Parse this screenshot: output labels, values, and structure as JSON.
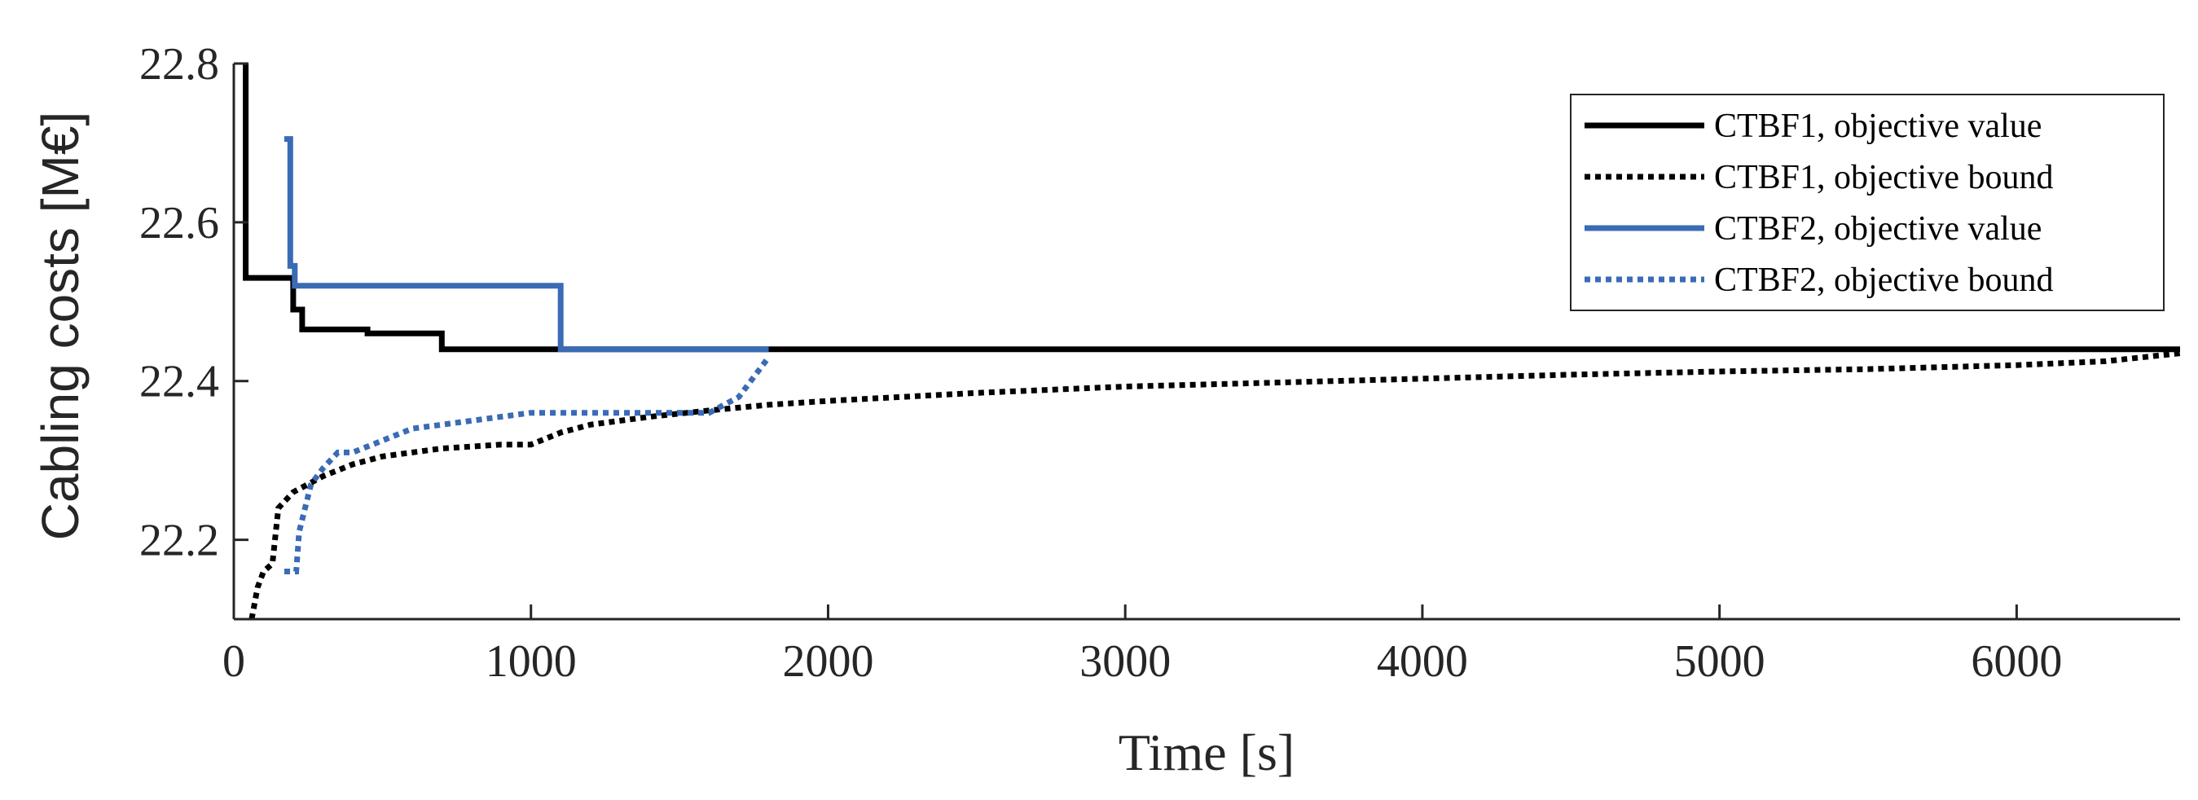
{
  "chart_data": {
    "type": "line",
    "xlabel": "Time [s]",
    "ylabel": "Cabling costs [M€]",
    "xlim": [
      0,
      6550
    ],
    "ylim": [
      22.1,
      22.8
    ],
    "xticks": [
      0,
      1000,
      2000,
      3000,
      4000,
      5000,
      6000
    ],
    "yticks": [
      22.2,
      22.4,
      22.6,
      22.8
    ],
    "xtick_labels": [
      "0",
      "1000",
      "2000",
      "3000",
      "4000",
      "5000",
      "6000"
    ],
    "ytick_labels": [
      "22.2",
      "22.4",
      "22.6",
      "22.8"
    ],
    "grid": false,
    "legend_position": "top-right",
    "series": [
      {
        "name": "CTBF1, objective value",
        "color": "#000000",
        "style": "solid",
        "x": [
          40,
          40,
          200,
          200,
          230,
          230,
          450,
          450,
          700,
          700,
          6550
        ],
        "y": [
          22.8,
          22.53,
          22.53,
          22.49,
          22.49,
          22.465,
          22.465,
          22.46,
          22.46,
          22.44,
          22.44
        ]
      },
      {
        "name": "CTBF1, objective bound",
        "color": "#000000",
        "style": "dotted",
        "x": [
          60,
          80,
          100,
          130,
          150,
          200,
          250,
          300,
          400,
          500,
          700,
          900,
          1000,
          1100,
          1200,
          1400,
          1600,
          1800,
          2000,
          2500,
          3000,
          3500,
          4000,
          4500,
          5000,
          5500,
          6000,
          6300,
          6550
        ],
        "y": [
          22.1,
          22.14,
          22.16,
          22.17,
          22.24,
          22.26,
          22.27,
          22.28,
          22.295,
          22.305,
          22.315,
          22.32,
          22.32,
          22.335,
          22.345,
          22.355,
          22.363,
          22.37,
          22.375,
          22.385,
          22.393,
          22.398,
          22.403,
          22.408,
          22.412,
          22.415,
          22.42,
          22.425,
          22.435
        ]
      },
      {
        "name": "CTBF2, objective value",
        "color": "#3a6bb5",
        "style": "solid",
        "x": [
          170,
          190,
          190,
          205,
          205,
          1100,
          1100,
          1800,
          1800
        ],
        "y": [
          22.705,
          22.705,
          22.545,
          22.545,
          22.52,
          22.52,
          22.44,
          22.44,
          22.44
        ]
      },
      {
        "name": "CTBF2, objective bound",
        "color": "#3a6bb5",
        "style": "dotted",
        "x": [
          170,
          210,
          220,
          260,
          300,
          350,
          400,
          500,
          600,
          700,
          800,
          1000,
          1200,
          1400,
          1600,
          1700,
          1800
        ],
        "y": [
          22.16,
          22.16,
          22.21,
          22.27,
          22.29,
          22.31,
          22.31,
          22.325,
          22.34,
          22.345,
          22.35,
          22.36,
          22.36,
          22.36,
          22.36,
          22.38,
          22.43
        ]
      }
    ]
  }
}
